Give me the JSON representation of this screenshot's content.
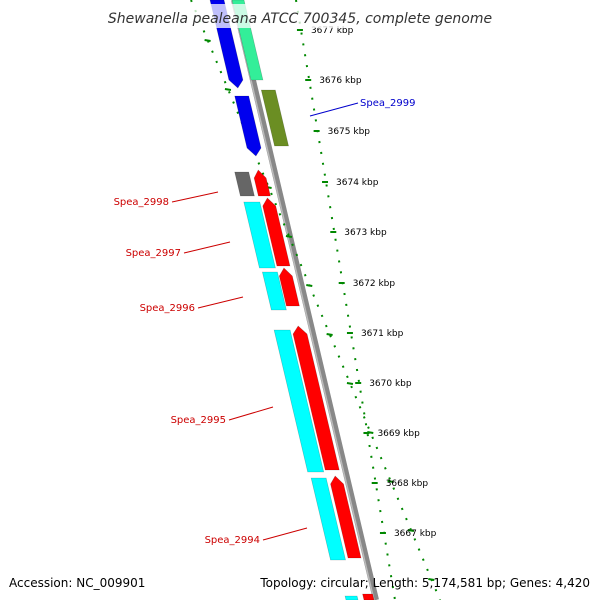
{
  "title": "Shewanella pealeana ATCC 700345, complete genome",
  "footer": {
    "accession": "Accession: NC_009901",
    "topology": "Topology: circular; Length: 5,174,581 bp; Genes: 4,420"
  },
  "colors": {
    "backbone": "#888888",
    "forward_cds": "#ff0000",
    "forward_rna": "#00ffff",
    "reverse_blue": "#0000ee",
    "reverse_green": "#33ee99",
    "reverse_olive": "#6b8e23",
    "pseudo": "#666666",
    "ruler": "#008800",
    "label_forward": "#cc0000",
    "label_reverse": "#0000cc"
  },
  "scale_labels": [
    "3677 kbp",
    "3676 kbp",
    "3675 kbp",
    "3674 kbp",
    "3673 kbp",
    "3672 kbp",
    "3671 kbp",
    "3670 kbp",
    "3669 kbp",
    "3668 kbp",
    "3667 kbp"
  ],
  "gene_labels": [
    {
      "text": "Spea_2999",
      "strand": "reverse"
    },
    {
      "text": "Spea_2998",
      "strand": "forward"
    },
    {
      "text": "Spea_2997",
      "strand": "forward"
    },
    {
      "text": "Spea_2996",
      "strand": "forward"
    },
    {
      "text": "Spea_2995",
      "strand": "forward"
    },
    {
      "text": "Spea_2994",
      "strand": "forward"
    }
  ]
}
